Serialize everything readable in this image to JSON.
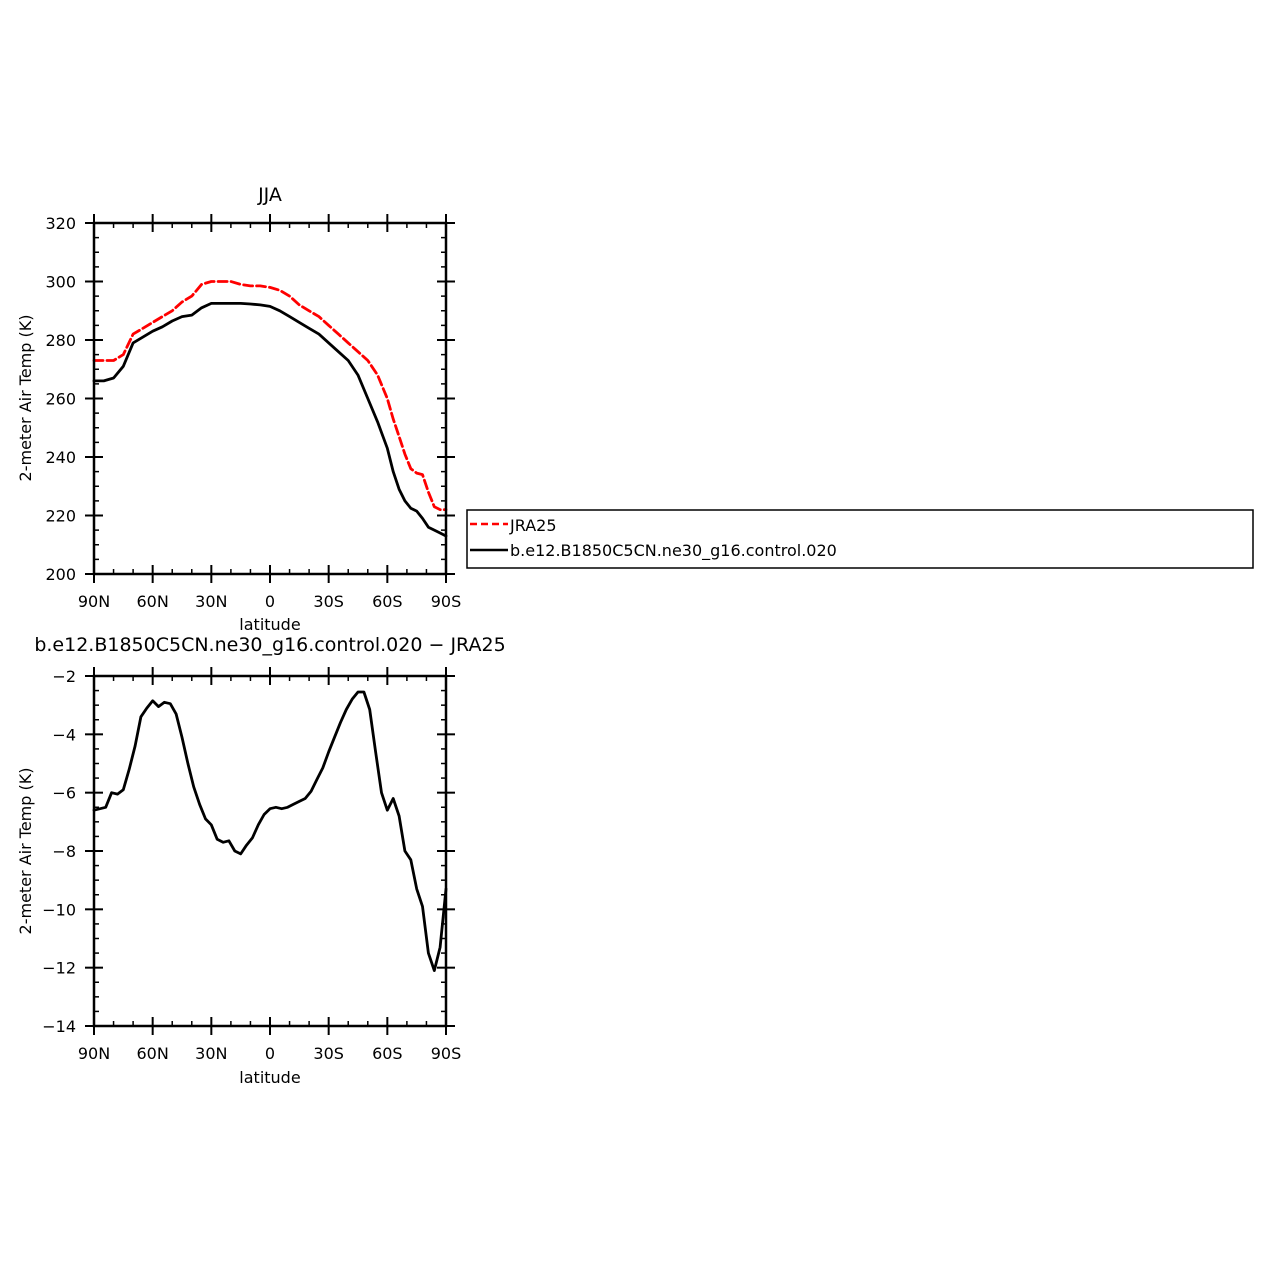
{
  "chart_data": [
    {
      "type": "line",
      "title": "JJA",
      "xlabel": "latitude",
      "ylabel": "2-meter Air Temp (K)",
      "xlim": [
        90,
        -90
      ],
      "ylim": [
        200,
        320
      ],
      "xticks": [
        {
          "value": 90,
          "label": "90N"
        },
        {
          "value": 60,
          "label": "60N"
        },
        {
          "value": 30,
          "label": "30N"
        },
        {
          "value": 0,
          "label": "0"
        },
        {
          "value": -30,
          "label": "30S"
        },
        {
          "value": -60,
          "label": "60S"
        },
        {
          "value": -90,
          "label": "90S"
        }
      ],
      "yticks": [
        200,
        220,
        240,
        260,
        280,
        300,
        320
      ],
      "grid": false,
      "legend_position": "right",
      "series": [
        {
          "name": "JRA25",
          "color": "#ff0000",
          "style": "dashed",
          "x": [
            90,
            85,
            80,
            75,
            70,
            65,
            60,
            55,
            50,
            45,
            40,
            35,
            30,
            25,
            20,
            15,
            10,
            5,
            0,
            -5,
            -10,
            -15,
            -20,
            -25,
            -30,
            -35,
            -40,
            -45,
            -50,
            -55,
            -60,
            -63,
            -66,
            -69,
            -72,
            -75,
            -78,
            -81,
            -84,
            -87,
            -90
          ],
          "values": [
            273,
            273,
            273,
            275,
            282,
            284,
            286,
            288,
            290,
            293,
            295,
            299,
            300,
            300,
            300,
            299,
            298.5,
            298.5,
            298,
            297,
            295,
            292,
            290,
            288,
            285,
            282,
            279,
            276,
            273,
            268,
            260,
            253,
            247,
            241,
            236,
            234.5,
            234,
            228,
            223,
            222,
            222
          ]
        },
        {
          "name": "b.e12.B1850C5CN.ne30_g16.control.020",
          "color": "#000000",
          "style": "solid",
          "x": [
            90,
            85,
            80,
            75,
            70,
            65,
            60,
            55,
            50,
            45,
            40,
            35,
            30,
            25,
            20,
            15,
            10,
            5,
            0,
            -5,
            -10,
            -15,
            -20,
            -25,
            -30,
            -35,
            -40,
            -45,
            -50,
            -55,
            -60,
            -63,
            -66,
            -69,
            -72,
            -75,
            -78,
            -81,
            -84,
            -87,
            -90
          ],
          "values": [
            266,
            266,
            267,
            271,
            279,
            281,
            283,
            284.5,
            286.5,
            288,
            288.5,
            291,
            292.5,
            292.5,
            292.5,
            292.5,
            292.3,
            292,
            291.5,
            290,
            288,
            286,
            284,
            282,
            279,
            276,
            273,
            268,
            260,
            252,
            243,
            235,
            229,
            225,
            222.5,
            221.5,
            219,
            216,
            215,
            214,
            213
          ]
        }
      ]
    },
    {
      "type": "line",
      "title": "b.e12.B1850C5CN.ne30_g16.control.020 − JRA25",
      "xlabel": "latitude",
      "ylabel": "2-meter Air Temp (K)",
      "xlim": [
        90,
        -90
      ],
      "ylim": [
        -14,
        -2
      ],
      "xticks": [
        {
          "value": 90,
          "label": "90N"
        },
        {
          "value": 60,
          "label": "60N"
        },
        {
          "value": 30,
          "label": "30N"
        },
        {
          "value": 0,
          "label": "0"
        },
        {
          "value": -30,
          "label": "30S"
        },
        {
          "value": -60,
          "label": "60S"
        },
        {
          "value": -90,
          "label": "90S"
        }
      ],
      "yticks": [
        -14,
        -12,
        -10,
        -8,
        -6,
        -4,
        -2
      ],
      "grid": false,
      "series": [
        {
          "color": "#000000",
          "style": "solid",
          "x": [
            90,
            84,
            81,
            78,
            75,
            72,
            69,
            66,
            63,
            60,
            57,
            54,
            51,
            48,
            45,
            42,
            39,
            36,
            33,
            30,
            27,
            24,
            21,
            18,
            15,
            12,
            9,
            6,
            3,
            0,
            -3,
            -6,
            -9,
            -12,
            -15,
            -18,
            -21,
            -24,
            -27,
            -30,
            -33,
            -36,
            -39,
            -42,
            -45,
            -48,
            -51,
            -54,
            -57,
            -60,
            -63,
            -66,
            -69,
            -72,
            -75,
            -78,
            -81,
            -84,
            -87,
            -90
          ],
          "values": [
            -6.6,
            -6.5,
            -6.0,
            -6.05,
            -5.9,
            -5.2,
            -4.4,
            -3.4,
            -3.1,
            -2.85,
            -3.05,
            -2.9,
            -2.95,
            -3.3,
            -4.1,
            -5.0,
            -5.8,
            -6.4,
            -6.9,
            -7.1,
            -7.6,
            -7.7,
            -7.65,
            -8.0,
            -8.1,
            -7.8,
            -7.55,
            -7.1,
            -6.75,
            -6.55,
            -6.5,
            -6.55,
            -6.5,
            -6.4,
            -6.3,
            -6.2,
            -5.95,
            -5.55,
            -5.15,
            -4.6,
            -4.1,
            -3.6,
            -3.15,
            -2.8,
            -2.55,
            -2.55,
            -3.15,
            -4.6,
            -6.0,
            -6.6,
            -6.2,
            -6.8,
            -8.0,
            -8.3,
            -9.3,
            -9.9,
            -11.5,
            -12.1,
            -11.3,
            -9.3
          ]
        }
      ]
    }
  ],
  "legend": {
    "items": [
      {
        "label": "JRA25",
        "color": "#ff0000",
        "style": "dashed"
      },
      {
        "label": "b.e12.B1850C5CN.ne30_g16.control.020",
        "color": "#000000",
        "style": "solid"
      }
    ]
  }
}
